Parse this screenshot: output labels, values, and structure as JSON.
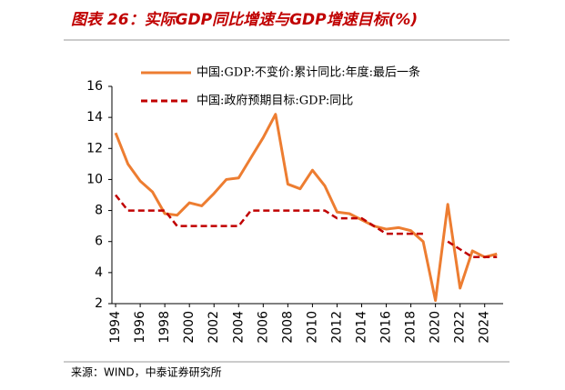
{
  "chart_data": {
    "type": "line",
    "title": "图表 26：实际GDP同比增速与GDP增速目标(%)",
    "source": "来源：WIND，中泰证券研究所",
    "x": [
      1994,
      1995,
      1996,
      1997,
      1998,
      1999,
      2000,
      2001,
      2002,
      2003,
      2004,
      2005,
      2006,
      2007,
      2008,
      2009,
      2010,
      2011,
      2012,
      2013,
      2014,
      2015,
      2016,
      2017,
      2018,
      2019,
      2020,
      2021,
      2022,
      2023,
      2024,
      2025
    ],
    "series": [
      {
        "name": "中国:GDP:不变价:累计同比:年度:最后一条",
        "color": "#ED7D31",
        "dash": false,
        "values": [
          13.0,
          11.0,
          9.9,
          9.2,
          7.8,
          7.7,
          8.5,
          8.3,
          9.1,
          10.0,
          10.1,
          11.4,
          12.7,
          14.2,
          9.7,
          9.4,
          10.6,
          9.6,
          7.9,
          7.8,
          7.4,
          7.0,
          6.8,
          6.9,
          6.7,
          6.0,
          2.2,
          8.4,
          3.0,
          5.4,
          5.0,
          5.2
        ]
      },
      {
        "name": "中国:政府预期目标:GDP:同比",
        "color": "#C00000",
        "dash": true,
        "values": [
          9.0,
          8.0,
          8.0,
          8.0,
          8.0,
          7.0,
          7.0,
          7.0,
          7.0,
          7.0,
          7.0,
          8.0,
          8.0,
          8.0,
          8.0,
          8.0,
          8.0,
          8.0,
          7.5,
          7.5,
          7.5,
          7.0,
          6.5,
          6.5,
          6.5,
          6.5,
          null,
          6.0,
          5.5,
          5.0,
          5.0,
          5.0
        ]
      }
    ],
    "xlim": [
      1993.7,
      2025.5
    ],
    "xticks": [
      1994,
      1996,
      1998,
      2000,
      2002,
      2004,
      2006,
      2008,
      2010,
      2012,
      2014,
      2016,
      2018,
      2020,
      2022,
      2024
    ],
    "ylim": [
      2,
      16
    ],
    "yticks": [
      2,
      4,
      6,
      8,
      10,
      12,
      14,
      16
    ],
    "grid": false
  }
}
